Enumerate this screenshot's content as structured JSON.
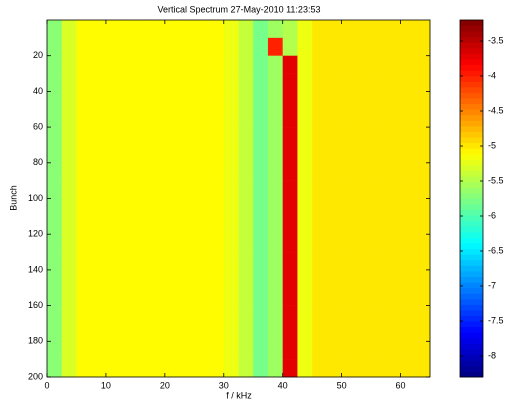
{
  "chart_data": {
    "type": "heatmap",
    "title": "Vertical Spectrum 27-May-2010 11:23:53",
    "x_label": "f / kHz",
    "y_label": "Bunch",
    "xlim": [
      0,
      65
    ],
    "xticks": [
      0,
      10,
      20,
      30,
      40,
      50,
      60
    ],
    "ylim": [
      0,
      200
    ],
    "yticks": [
      20,
      40,
      60,
      80,
      100,
      120,
      140,
      160,
      180,
      200
    ],
    "y_reversed": true,
    "colormap": "jet",
    "clim": [
      -8.3,
      -3.2
    ],
    "cticks": [
      -3.5,
      -4,
      -4.5,
      -5,
      -5.5,
      -6,
      -6.5,
      -7,
      -7.5,
      -8
    ],
    "x_bins": [
      0,
      2.5,
      5,
      7.5,
      10,
      12.5,
      15,
      17.5,
      20,
      22.5,
      25,
      27.5,
      30,
      32.5,
      35,
      37.5,
      40,
      42.5,
      45,
      47.5,
      50,
      52.5,
      55,
      57.5,
      60,
      62.5,
      65
    ],
    "y_bins": [
      0,
      10,
      20,
      30,
      40,
      50,
      60,
      70,
      80,
      90,
      100,
      110,
      120,
      130,
      140,
      150,
      160,
      170,
      180,
      190,
      200
    ],
    "z": [
      [
        -5.7,
        -5.3,
        -5.1,
        -5.1,
        -5.1,
        -5.1,
        -5.1,
        -5.1,
        -5.1,
        -5.1,
        -5.1,
        -5.1,
        -5.2,
        -5.4,
        -5.8,
        -5.6,
        -5.5,
        -5.2,
        -5.0,
        -5.0,
        -5.0,
        -5.0,
        -5.0,
        -5.0,
        -5.0,
        -5.0
      ],
      [
        -5.7,
        -5.3,
        -5.1,
        -5.1,
        -5.1,
        -5.1,
        -5.1,
        -5.1,
        -5.1,
        -5.1,
        -5.1,
        -5.1,
        -5.2,
        -5.4,
        -5.8,
        -4.0,
        -5.5,
        -5.2,
        -5.0,
        -5.0,
        -5.0,
        -5.0,
        -5.0,
        -5.0,
        -5.0,
        -5.0
      ],
      [
        -5.7,
        -5.3,
        -5.1,
        -5.1,
        -5.1,
        -5.1,
        -5.1,
        -5.1,
        -5.1,
        -5.1,
        -5.1,
        -5.1,
        -5.2,
        -5.4,
        -5.8,
        -5.6,
        -3.7,
        -5.2,
        -5.0,
        -5.0,
        -5.0,
        -5.0,
        -5.0,
        -5.0,
        -5.0,
        -5.0
      ],
      [
        -5.7,
        -5.3,
        -5.1,
        -5.1,
        -5.1,
        -5.1,
        -5.1,
        -5.1,
        -5.1,
        -5.1,
        -5.1,
        -5.1,
        -5.2,
        -5.4,
        -5.8,
        -5.6,
        -3.7,
        -5.2,
        -5.0,
        -5.0,
        -5.0,
        -5.0,
        -5.0,
        -5.0,
        -5.0,
        -5.0
      ],
      [
        -5.7,
        -5.3,
        -5.1,
        -5.1,
        -5.1,
        -5.1,
        -5.1,
        -5.1,
        -5.1,
        -5.1,
        -5.1,
        -5.1,
        -5.2,
        -5.4,
        -5.8,
        -5.6,
        -3.7,
        -5.2,
        -5.0,
        -5.0,
        -5.0,
        -5.0,
        -5.0,
        -5.0,
        -5.0,
        -5.0
      ],
      [
        -5.7,
        -5.3,
        -5.1,
        -5.1,
        -5.1,
        -5.1,
        -5.1,
        -5.1,
        -5.1,
        -5.1,
        -5.1,
        -5.1,
        -5.2,
        -5.4,
        -5.8,
        -5.6,
        -3.7,
        -5.2,
        -5.0,
        -5.0,
        -5.0,
        -5.0,
        -5.0,
        -5.0,
        -5.0,
        -5.0
      ],
      [
        -5.7,
        -5.3,
        -5.1,
        -5.1,
        -5.1,
        -5.1,
        -5.1,
        -5.1,
        -5.1,
        -5.1,
        -5.1,
        -5.1,
        -5.2,
        -5.4,
        -5.8,
        -5.6,
        -3.7,
        -5.2,
        -5.0,
        -5.0,
        -5.0,
        -5.0,
        -5.0,
        -5.0,
        -5.0,
        -5.0
      ],
      [
        -5.7,
        -5.3,
        -5.1,
        -5.1,
        -5.1,
        -5.1,
        -5.1,
        -5.1,
        -5.1,
        -5.1,
        -5.1,
        -5.1,
        -5.2,
        -5.4,
        -5.8,
        -5.6,
        -3.7,
        -5.2,
        -5.0,
        -5.0,
        -5.0,
        -5.0,
        -5.0,
        -5.0,
        -5.0,
        -5.0
      ],
      [
        -5.7,
        -5.3,
        -5.1,
        -5.1,
        -5.1,
        -5.1,
        -5.1,
        -5.1,
        -5.1,
        -5.1,
        -5.1,
        -5.1,
        -5.2,
        -5.4,
        -5.8,
        -5.6,
        -3.7,
        -5.2,
        -5.0,
        -5.0,
        -5.0,
        -5.0,
        -5.0,
        -5.0,
        -5.0,
        -5.0
      ],
      [
        -5.7,
        -5.3,
        -5.1,
        -5.1,
        -5.1,
        -5.1,
        -5.1,
        -5.1,
        -5.1,
        -5.1,
        -5.1,
        -5.1,
        -5.2,
        -5.4,
        -5.8,
        -5.6,
        -3.7,
        -5.2,
        -5.0,
        -5.0,
        -5.0,
        -5.0,
        -5.0,
        -5.0,
        -5.0,
        -5.0
      ],
      [
        -5.7,
        -5.3,
        -5.1,
        -5.1,
        -5.1,
        -5.1,
        -5.1,
        -5.1,
        -5.1,
        -5.1,
        -5.1,
        -5.1,
        -5.2,
        -5.4,
        -5.8,
        -5.6,
        -3.7,
        -5.2,
        -5.0,
        -5.0,
        -5.0,
        -5.0,
        -5.0,
        -5.0,
        -5.0,
        -5.0
      ],
      [
        -5.7,
        -5.3,
        -5.1,
        -5.1,
        -5.1,
        -5.1,
        -5.1,
        -5.1,
        -5.1,
        -5.1,
        -5.1,
        -5.1,
        -5.2,
        -5.4,
        -5.8,
        -5.6,
        -3.7,
        -5.2,
        -5.0,
        -5.0,
        -5.0,
        -5.0,
        -5.0,
        -5.0,
        -5.0,
        -5.0
      ],
      [
        -5.7,
        -5.3,
        -5.1,
        -5.1,
        -5.1,
        -5.1,
        -5.1,
        -5.1,
        -5.1,
        -5.1,
        -5.1,
        -5.1,
        -5.2,
        -5.4,
        -5.8,
        -5.6,
        -3.7,
        -5.2,
        -5.0,
        -5.0,
        -5.0,
        -5.0,
        -5.0,
        -5.0,
        -5.0,
        -5.0
      ],
      [
        -5.7,
        -5.3,
        -5.1,
        -5.1,
        -5.1,
        -5.1,
        -5.1,
        -5.1,
        -5.1,
        -5.1,
        -5.1,
        -5.1,
        -5.2,
        -5.4,
        -5.8,
        -5.6,
        -3.7,
        -5.2,
        -5.0,
        -5.0,
        -5.0,
        -5.0,
        -5.0,
        -5.0,
        -5.0,
        -5.0
      ],
      [
        -5.7,
        -5.3,
        -5.1,
        -5.1,
        -5.1,
        -5.1,
        -5.1,
        -5.1,
        -5.1,
        -5.1,
        -5.1,
        -5.1,
        -5.2,
        -5.4,
        -5.8,
        -5.6,
        -3.7,
        -5.2,
        -5.0,
        -5.0,
        -5.0,
        -5.0,
        -5.0,
        -5.0,
        -5.0,
        -5.0
      ],
      [
        -5.7,
        -5.3,
        -5.1,
        -5.1,
        -5.1,
        -5.1,
        -5.1,
        -5.1,
        -5.1,
        -5.1,
        -5.1,
        -5.1,
        -5.2,
        -5.4,
        -5.8,
        -5.6,
        -3.7,
        -5.2,
        -5.0,
        -5.0,
        -5.0,
        -5.0,
        -5.0,
        -5.0,
        -5.0,
        -5.0
      ],
      [
        -5.7,
        -5.3,
        -5.1,
        -5.1,
        -5.1,
        -5.1,
        -5.1,
        -5.1,
        -5.1,
        -5.1,
        -5.1,
        -5.1,
        -5.2,
        -5.4,
        -5.8,
        -5.6,
        -3.7,
        -5.2,
        -5.0,
        -5.0,
        -5.0,
        -5.0,
        -5.0,
        -5.0,
        -5.0,
        -5.0
      ],
      [
        -5.7,
        -5.3,
        -5.1,
        -5.1,
        -5.1,
        -5.1,
        -5.1,
        -5.1,
        -5.1,
        -5.1,
        -5.1,
        -5.1,
        -5.2,
        -5.4,
        -5.8,
        -5.6,
        -3.7,
        -5.2,
        -5.0,
        -5.0,
        -5.0,
        -5.0,
        -5.0,
        -5.0,
        -5.0,
        -5.0
      ],
      [
        -5.7,
        -5.3,
        -5.1,
        -5.1,
        -5.1,
        -5.1,
        -5.1,
        -5.1,
        -5.1,
        -5.1,
        -5.1,
        -5.1,
        -5.2,
        -5.4,
        -5.8,
        -5.6,
        -3.7,
        -5.2,
        -5.0,
        -5.0,
        -5.0,
        -5.0,
        -5.0,
        -5.0,
        -5.0,
        -5.0
      ],
      [
        -5.7,
        -5.3,
        -5.1,
        -5.1,
        -5.1,
        -5.1,
        -5.1,
        -5.1,
        -5.1,
        -5.1,
        -5.1,
        -5.1,
        -5.2,
        -5.4,
        -5.8,
        -5.6,
        -3.7,
        -5.2,
        -5.0,
        -5.0,
        -5.0,
        -5.0,
        -5.0,
        -5.0,
        -5.0,
        -5.0
      ]
    ]
  }
}
